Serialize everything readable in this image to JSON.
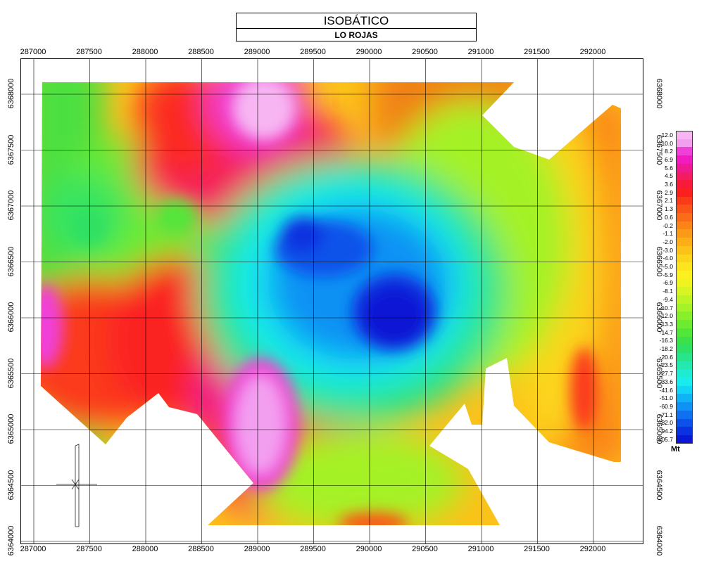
{
  "header": {
    "title": "ISOBÁTICO",
    "subtitle": "LO ROJAS"
  },
  "axes": {
    "x_ticks": [
      "287000",
      "287500",
      "288000",
      "288500",
      "289000",
      "289500",
      "290000",
      "290500",
      "291000",
      "291500",
      "292000"
    ],
    "y_ticks": [
      "6368000",
      "6367500",
      "6367000",
      "6366500",
      "6366000",
      "6365500",
      "6365000",
      "6364500",
      "6364000"
    ]
  },
  "legend": {
    "unit": "Mt",
    "labels": [
      "12.0",
      "10.0",
      "8.2",
      "6.9",
      "5.6",
      "4.5",
      "3.6",
      "2.9",
      "2.1",
      "1.3",
      "0.6",
      "-0.2",
      "-1.1",
      "-2.0",
      "-3.0",
      "-4.0",
      "-5.0",
      "-5.9",
      "-6.9",
      "-8.1",
      "-9.4",
      "-10.7",
      "-12.0",
      "-13.3",
      "-14.7",
      "-16.3",
      "-18.2",
      "-20.6",
      "-23.5",
      "-27.7",
      "-33.6",
      "-41.6",
      "-51.0",
      "-60.9",
      "-71.1",
      "-82.0",
      "-94.2",
      "-105.7"
    ],
    "colors": [
      "#f7b6f2",
      "#f39ff0",
      "#f040d8",
      "#f01cc0",
      "#f01a90",
      "#f41c60",
      "#f81a3a",
      "#fb1f1f",
      "#fb3a1a",
      "#fb5418",
      "#fb6c18",
      "#fb8418",
      "#fb9a18",
      "#fcae18",
      "#fcc21a",
      "#fcd41c",
      "#fce41e",
      "#fcf01e",
      "#f0f41e",
      "#d8f422",
      "#bef424",
      "#a4f228",
      "#88ef2c",
      "#6ceb30",
      "#52e63a",
      "#3ce048",
      "#2ee064",
      "#28e48a",
      "#24e8ae",
      "#1eecd2",
      "#18ecee",
      "#12d4f4",
      "#10b4f4",
      "#1092f4",
      "#0e72f0",
      "#0c52ea",
      "#0a32e0",
      "#0818d4"
    ]
  },
  "north_arrow": {
    "label": "N"
  },
  "colors": {
    "frame": "#000000",
    "grid": "#000000",
    "background": "#ffffff"
  }
}
